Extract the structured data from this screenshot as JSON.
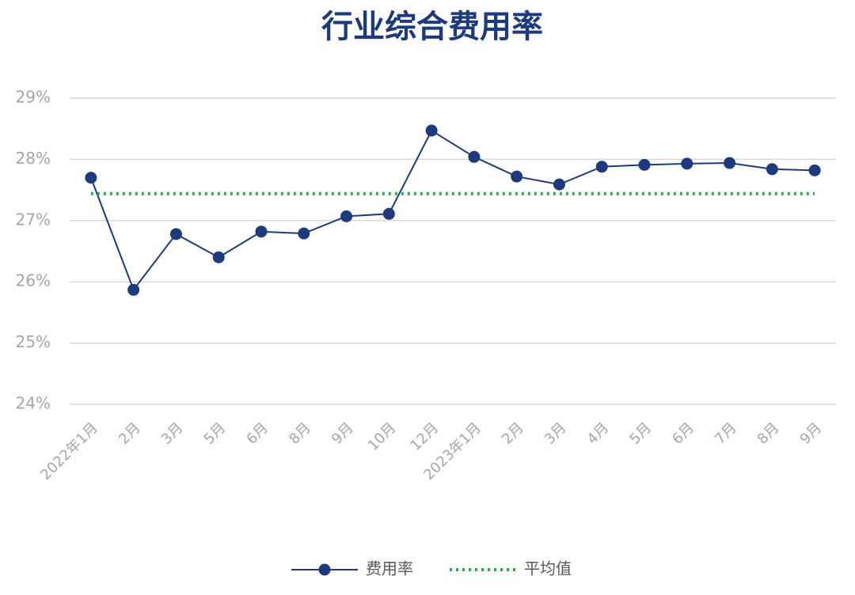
{
  "chart_data": {
    "type": "line",
    "title": "行业综合费用率",
    "categories": [
      "2022年1月",
      "2月",
      "3月",
      "5月",
      "6月",
      "8月",
      "9月",
      "10月",
      "12月",
      "2023年1月",
      "2月",
      "3月",
      "4月",
      "5月",
      "6月",
      "7月",
      "8月",
      "9月"
    ],
    "series": [
      {
        "name": "费用率",
        "color": "#1c3a7c",
        "values": [
          27.7,
          25.87,
          26.78,
          26.4,
          26.82,
          26.79,
          27.07,
          27.11,
          28.47,
          28.04,
          27.72,
          27.59,
          27.88,
          27.91,
          27.93,
          27.94,
          27.84,
          27.82
        ]
      },
      {
        "name": "平均值",
        "color": "#1db34e",
        "values": [
          27.44,
          27.44,
          27.44,
          27.44,
          27.44,
          27.44,
          27.44,
          27.44,
          27.44,
          27.44,
          27.44,
          27.44,
          27.44,
          27.44,
          27.44,
          27.44,
          27.44,
          27.44
        ]
      }
    ],
    "ylim": [
      24,
      29
    ],
    "yticks": [
      {
        "value": 24,
        "label": "24%"
      },
      {
        "value": 25,
        "label": "25%"
      },
      {
        "value": 26,
        "label": "26%"
      },
      {
        "value": 27,
        "label": "27%"
      },
      {
        "value": 28,
        "label": "28%"
      },
      {
        "value": 29,
        "label": "29%"
      }
    ],
    "grid": true,
    "legend": "bottom"
  }
}
